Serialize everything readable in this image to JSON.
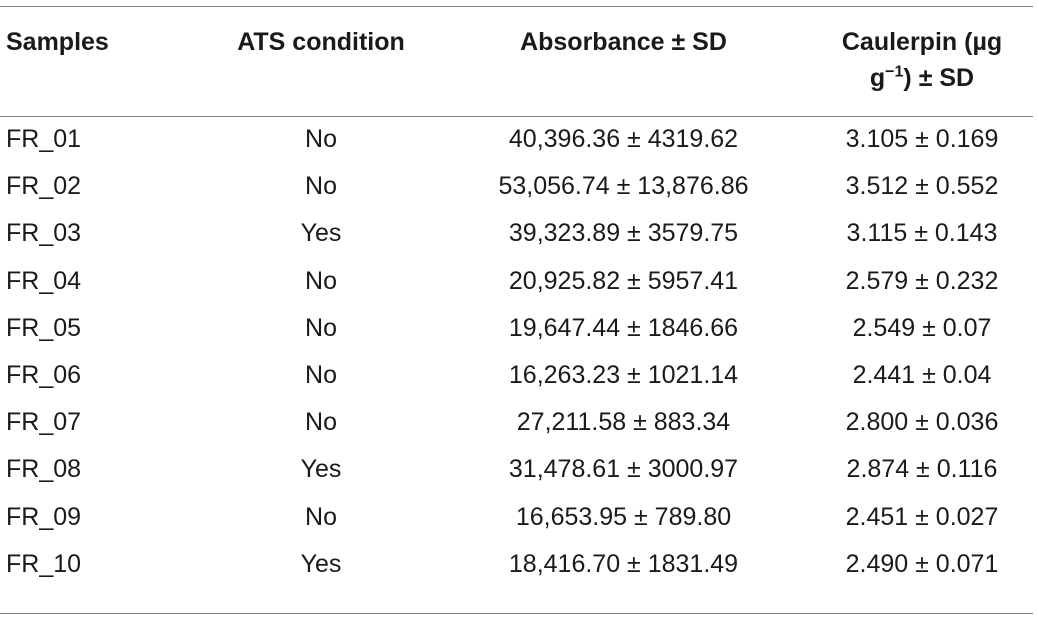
{
  "table": {
    "headers": {
      "samples": "Samples",
      "ats": "ATS condition",
      "absorbance": "Absorbance ± SD",
      "caulerpin_line1": "Caulerpin (µg",
      "caulerpin_line2_pre": "g",
      "caulerpin_line2_sup": "−1",
      "caulerpin_line2_post": ") ± SD"
    },
    "rows": [
      {
        "sample": "FR_01",
        "ats": "No",
        "absorbance": "40,396.36 ± 4319.62",
        "caulerpin": "3.105 ± 0.169"
      },
      {
        "sample": "FR_02",
        "ats": "No",
        "absorbance": "53,056.74 ± 13,876.86",
        "caulerpin": "3.512 ± 0.552"
      },
      {
        "sample": "FR_03",
        "ats": "Yes",
        "absorbance": "39,323.89 ± 3579.75",
        "caulerpin": "3.115 ± 0.143"
      },
      {
        "sample": "FR_04",
        "ats": "No",
        "absorbance": "20,925.82 ± 5957.41",
        "caulerpin": "2.579 ± 0.232"
      },
      {
        "sample": "FR_05",
        "ats": "No",
        "absorbance": "19,647.44 ± 1846.66",
        "caulerpin": "2.549 ± 0.07"
      },
      {
        "sample": "FR_06",
        "ats": "No",
        "absorbance": "16,263.23 ± 1021.14",
        "caulerpin": "2.441 ± 0.04"
      },
      {
        "sample": "FR_07",
        "ats": "No",
        "absorbance": "27,211.58 ± 883.34",
        "caulerpin": "2.800 ± 0.036"
      },
      {
        "sample": "FR_08",
        "ats": "Yes",
        "absorbance": "31,478.61 ± 3000.97",
        "caulerpin": "2.874 ± 0.116"
      },
      {
        "sample": "FR_09",
        "ats": "No",
        "absorbance": "16,653.95 ± 789.80",
        "caulerpin": "2.451 ± 0.027"
      },
      {
        "sample": "FR_10",
        "ats": "Yes",
        "absorbance": "18,416.70 ± 1831.49",
        "caulerpin": "2.490 ± 0.071"
      }
    ]
  }
}
